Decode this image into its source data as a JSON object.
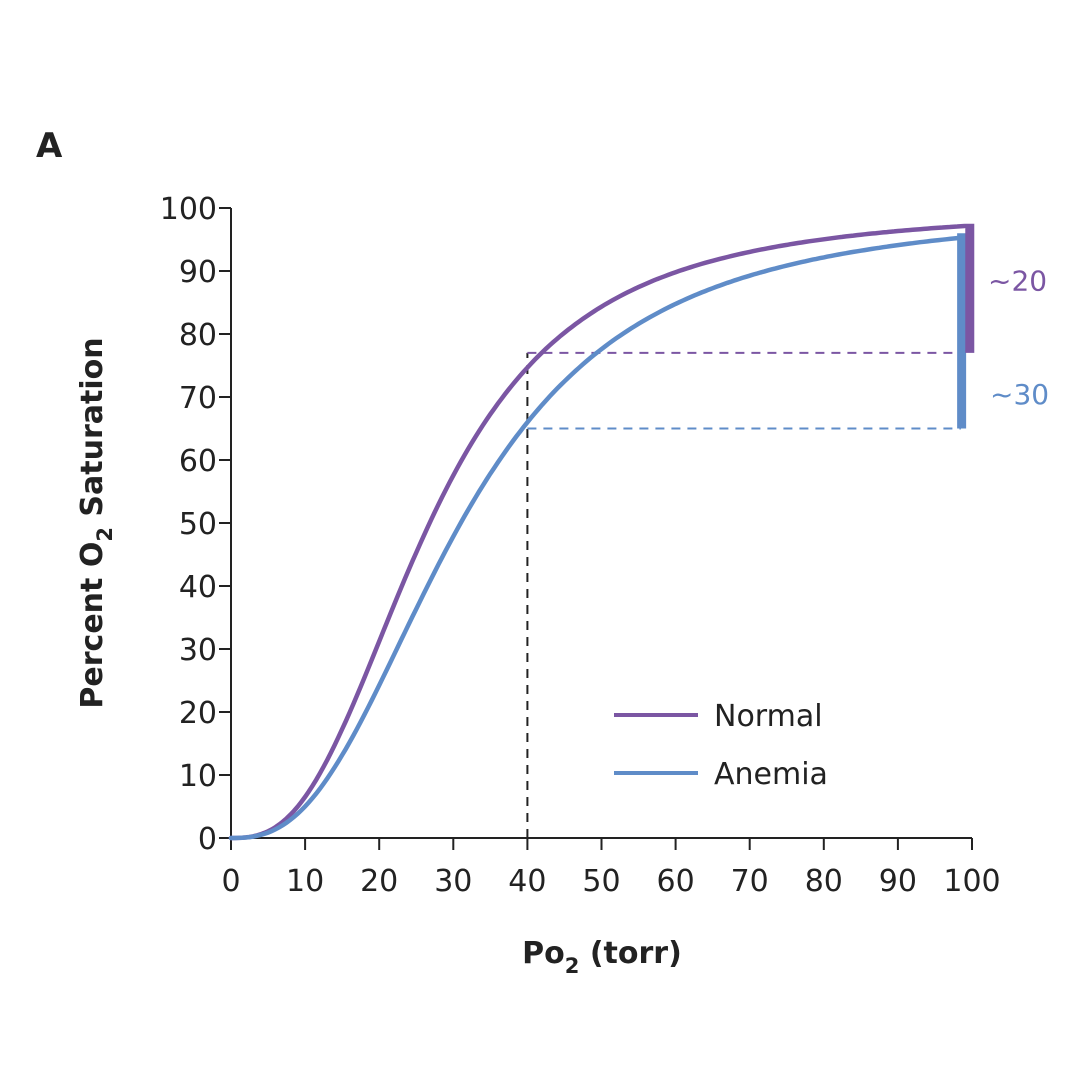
{
  "panel_label": "A",
  "colors": {
    "normal": "#7b56a3",
    "anemia": "#5f8cc8",
    "axis": "#222222",
    "guide": "#222222"
  },
  "chart_data": {
    "type": "line",
    "title": "",
    "xlabel": {
      "main": "Po",
      "sub": "2",
      "rest": " (torr)"
    },
    "ylabel": {
      "main": "Percent O",
      "sub": "2",
      "rest": " Saturation"
    },
    "xlim": [
      0,
      100
    ],
    "ylim": [
      0,
      100
    ],
    "xticks": [
      "0",
      "10",
      "20",
      "30",
      "40",
      "50",
      "60",
      "70",
      "80",
      "90",
      "100"
    ],
    "yticks": [
      "0",
      "10",
      "20",
      "30",
      "40",
      "50",
      "60",
      "70",
      "80",
      "90",
      "100"
    ],
    "series": [
      {
        "name": "Normal",
        "color": "#7b56a3",
        "p50": 26.8,
        "hill_n": 2.7
      },
      {
        "name": "Anemia",
        "color": "#5f8cc8",
        "p50": 31.0,
        "hill_n": 2.6
      }
    ],
    "guides": {
      "x": 40,
      "normal_y": 77,
      "anemia_y": 65
    },
    "annotations": [
      {
        "label": "~20",
        "color": "#7b56a3",
        "from": 77,
        "to": 97.5
      },
      {
        "label": "~30",
        "color": "#5f8cc8",
        "from": 65,
        "to": 96
      }
    ],
    "legend": {
      "position": "bottom-right",
      "entries": [
        "Normal",
        "Anemia"
      ]
    }
  }
}
